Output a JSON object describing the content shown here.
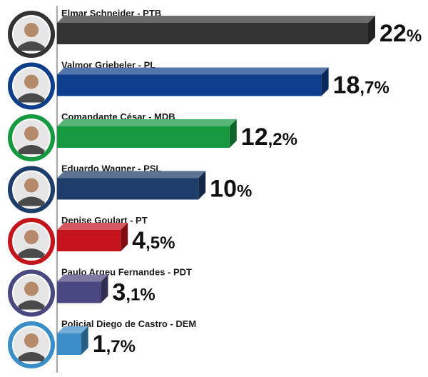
{
  "chart_data": {
    "type": "bar",
    "orientation": "horizontal",
    "categories": [
      "Elmar Schneider - PTB",
      "Valmor Griebeler - PL",
      "Comandante César - MDB",
      "Eduardo Wagner - PSL",
      "Denise Goulart - PT",
      "Paulo Argeu Fernandes - PDT",
      "Policial Diego de Castro - DEM"
    ],
    "values": [
      22,
      18.7,
      12.2,
      10,
      4.5,
      3.1,
      1.7
    ],
    "value_labels": [
      {
        "int": "22",
        "dec": "",
        "pct": "%"
      },
      {
        "int": "18",
        "dec": ",7",
        "pct": "%"
      },
      {
        "int": "12",
        "dec": ",2",
        "pct": "%"
      },
      {
        "int": "10",
        "dec": "",
        "pct": "%"
      },
      {
        "int": "4",
        "dec": ",5",
        "pct": "%"
      },
      {
        "int": "3",
        "dec": ",1",
        "pct": "%"
      },
      {
        "int": "1",
        "dec": ",7",
        "pct": "%"
      }
    ],
    "colors": [
      "#333333",
      "#0f3f8c",
      "#169a3f",
      "#1d3d6b",
      "#c4141c",
      "#4a4880",
      "#3b8fc9"
    ],
    "avatar_icons": [
      "avatar-icon",
      "avatar-icon",
      "avatar-icon",
      "avatar-icon",
      "avatar-icon",
      "avatar-icon",
      "avatar-icon"
    ],
    "xlim": [
      0,
      22
    ],
    "grid": false,
    "legend": "none"
  }
}
